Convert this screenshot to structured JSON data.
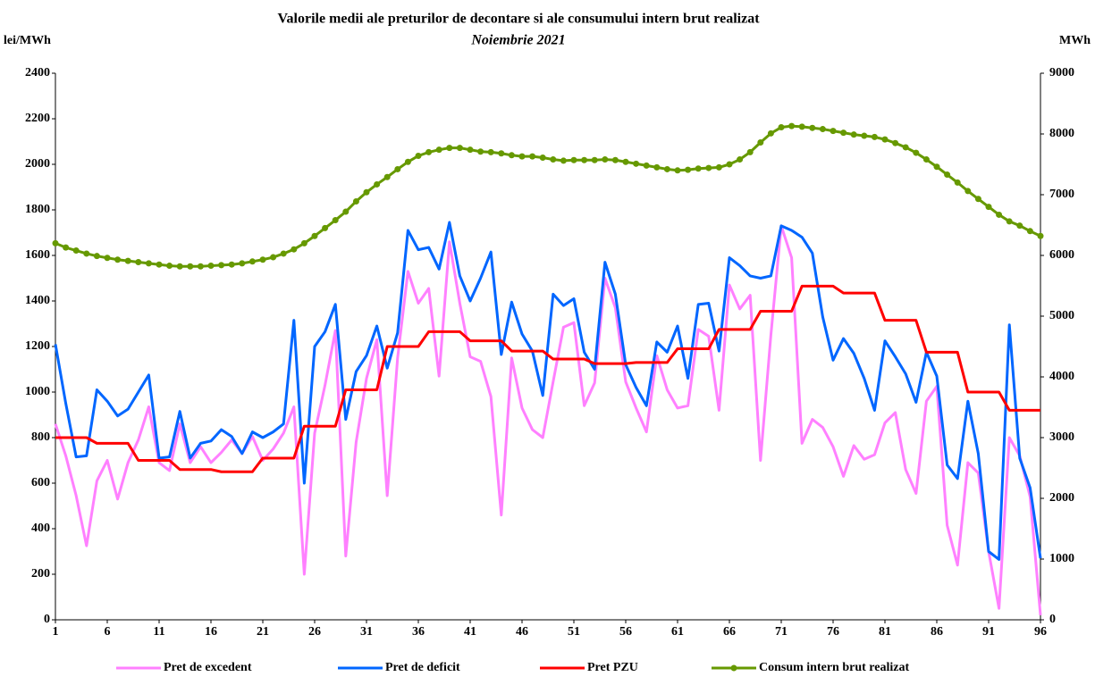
{
  "chart_data": {
    "type": "line",
    "title": "Valorile medii ale preturilor de decontare si ale consumului intern brut realizat",
    "subtitle": "Noiembrie 2021",
    "y_label": "lei/MWh",
    "y2_label": "MWh",
    "x": [
      1,
      2,
      3,
      4,
      5,
      6,
      7,
      8,
      9,
      10,
      11,
      12,
      13,
      14,
      15,
      16,
      17,
      18,
      19,
      20,
      21,
      22,
      23,
      24,
      25,
      26,
      27,
      28,
      29,
      30,
      31,
      32,
      33,
      34,
      35,
      36,
      37,
      38,
      39,
      40,
      41,
      42,
      43,
      44,
      45,
      46,
      47,
      48,
      49,
      50,
      51,
      52,
      53,
      54,
      55,
      56,
      57,
      58,
      59,
      60,
      61,
      62,
      63,
      64,
      65,
      66,
      67,
      68,
      69,
      70,
      71,
      72,
      73,
      74,
      75,
      76,
      77,
      78,
      79,
      80,
      81,
      82,
      83,
      84,
      85,
      86,
      87,
      88,
      89,
      90,
      91,
      92,
      93,
      94,
      95,
      96
    ],
    "xlim": [
      1,
      96
    ],
    "xticks": [
      1,
      6,
      11,
      16,
      21,
      26,
      31,
      36,
      41,
      46,
      51,
      56,
      61,
      66,
      71,
      76,
      81,
      86,
      91,
      96
    ],
    "ylim": [
      0,
      2400
    ],
    "yticks": [
      0,
      200,
      400,
      600,
      800,
      1000,
      1200,
      1400,
      1600,
      1800,
      2000,
      2200,
      2400
    ],
    "y2lim": [
      0,
      9000
    ],
    "y2ticks": [
      0,
      1000,
      2000,
      3000,
      4000,
      5000,
      6000,
      7000,
      8000,
      9000
    ],
    "grid": false,
    "legend": "bottom",
    "series": [
      {
        "name": "Pret de excedent",
        "color": "#ff80ff",
        "values": [
          860,
          720,
          545,
          325,
          610,
          700,
          530,
          690,
          790,
          935,
          690,
          655,
          860,
          690,
          760,
          690,
          735,
          790,
          730,
          805,
          700,
          750,
          820,
          935,
          200,
          820,
          1030,
          1270,
          280,
          780,
          1060,
          1230,
          545,
          1150,
          1530,
          1390,
          1455,
          1070,
          1660,
          1390,
          1155,
          1135,
          980,
          460,
          1150,
          930,
          835,
          800,
          1045,
          1285,
          1305,
          940,
          1040,
          1500,
          1370,
          1045,
          930,
          825,
          1160,
          1010,
          930,
          940,
          1275,
          1245,
          920,
          1470,
          1365,
          1425,
          700,
          1250,
          1730,
          1590,
          775,
          880,
          845,
          760,
          630,
          765,
          705,
          725,
          865,
          910,
          660,
          555,
          960,
          1025,
          415,
          240,
          690,
          645,
          300,
          50,
          800,
          720,
          540,
          20
        ]
      },
      {
        "name": "Pret de deficit",
        "color": "#0066ff",
        "values": [
          1210,
          950,
          715,
          720,
          1010,
          960,
          895,
          925,
          1000,
          1075,
          710,
          715,
          915,
          710,
          775,
          785,
          835,
          805,
          730,
          825,
          800,
          825,
          860,
          1315,
          600,
          1200,
          1265,
          1385,
          880,
          1090,
          1160,
          1290,
          1105,
          1260,
          1710,
          1625,
          1635,
          1540,
          1745,
          1510,
          1400,
          1500,
          1615,
          1165,
          1395,
          1255,
          1180,
          985,
          1430,
          1380,
          1410,
          1175,
          1100,
          1570,
          1430,
          1120,
          1020,
          940,
          1220,
          1175,
          1290,
          1060,
          1385,
          1390,
          1180,
          1590,
          1555,
          1510,
          1500,
          1510,
          1730,
          1710,
          1680,
          1610,
          1330,
          1140,
          1235,
          1170,
          1060,
          920,
          1225,
          1155,
          1080,
          955,
          1175,
          1070,
          680,
          620,
          960,
          730,
          300,
          265,
          1295,
          710,
          580,
          270
        ]
      },
      {
        "name": "Pret PZU",
        "color": "#ff0000",
        "values": [
          800,
          800,
          800,
          800,
          775,
          775,
          775,
          775,
          700,
          700,
          700,
          700,
          660,
          660,
          660,
          660,
          650,
          650,
          650,
          650,
          710,
          710,
          710,
          710,
          850,
          850,
          850,
          850,
          1010,
          1010,
          1010,
          1010,
          1200,
          1200,
          1200,
          1200,
          1265,
          1265,
          1265,
          1265,
          1225,
          1225,
          1225,
          1225,
          1180,
          1180,
          1180,
          1180,
          1145,
          1145,
          1145,
          1145,
          1125,
          1125,
          1125,
          1125,
          1130,
          1130,
          1130,
          1130,
          1190,
          1190,
          1190,
          1190,
          1275,
          1275,
          1275,
          1275,
          1355,
          1355,
          1355,
          1355,
          1465,
          1465,
          1465,
          1465,
          1435,
          1435,
          1435,
          1435,
          1315,
          1315,
          1315,
          1315,
          1175,
          1175,
          1175,
          1175,
          1000,
          1000,
          1000,
          1000,
          920,
          920,
          920,
          920
        ]
      },
      {
        "name": "Consum intern brut realizat",
        "color": "#669900",
        "axis": "y2",
        "marker": "circle",
        "values": [
          6200,
          6130,
          6080,
          6030,
          5990,
          5960,
          5930,
          5910,
          5890,
          5870,
          5850,
          5830,
          5820,
          5820,
          5820,
          5830,
          5840,
          5850,
          5870,
          5900,
          5930,
          5970,
          6030,
          6100,
          6200,
          6320,
          6450,
          6580,
          6720,
          6890,
          7040,
          7170,
          7290,
          7420,
          7540,
          7640,
          7700,
          7740,
          7770,
          7770,
          7740,
          7710,
          7700,
          7680,
          7650,
          7630,
          7630,
          7610,
          7580,
          7560,
          7570,
          7570,
          7570,
          7580,
          7570,
          7540,
          7510,
          7480,
          7450,
          7420,
          7400,
          7410,
          7430,
          7440,
          7450,
          7500,
          7580,
          7700,
          7860,
          8010,
          8110,
          8130,
          8120,
          8100,
          8080,
          8050,
          8020,
          7990,
          7970,
          7950,
          7910,
          7850,
          7780,
          7690,
          7580,
          7460,
          7330,
          7200,
          7060,
          6930,
          6800,
          6670,
          6560,
          6490,
          6400,
          6320
        ]
      }
    ]
  }
}
